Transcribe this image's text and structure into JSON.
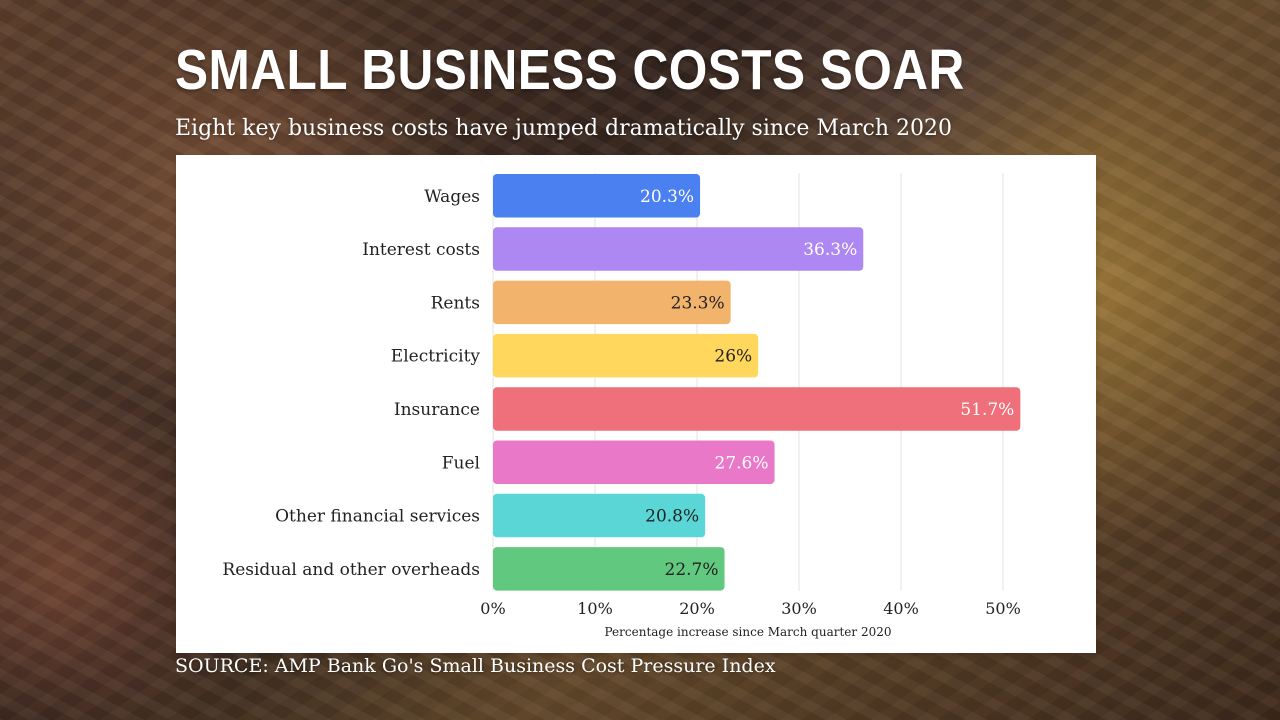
{
  "header": {
    "title": "SMALL BUSINESS COSTS SOAR",
    "subtitle": "Eight key business costs have jumped dramatically since March 2020"
  },
  "footer": {
    "source": "SOURCE: AMP Bank Go's Small Business Cost Pressure Index"
  },
  "chart_data": {
    "type": "bar",
    "orientation": "horizontal",
    "title": "SMALL BUSINESS COSTS SOAR",
    "subtitle": "Eight key business costs have jumped dramatically since March 2020",
    "xlabel": "Percentage increase since March quarter 2020",
    "ylabel": "",
    "xlim": [
      0,
      50
    ],
    "grid": true,
    "legend": "none",
    "ticks": [
      "0%",
      "10%",
      "20%",
      "30%",
      "40%",
      "50%"
    ],
    "categories": [
      "Wages",
      "Interest costs",
      "Rents",
      "Electricity",
      "Insurance",
      "Fuel",
      "Other financial services",
      "Residual and other overheads"
    ],
    "values": [
      20.3,
      36.3,
      23.3,
      26,
      51.7,
      27.6,
      20.8,
      22.7
    ],
    "value_labels": [
      "20.3%",
      "36.3%",
      "23.3%",
      "26%",
      "51.7%",
      "27.6%",
      "20.8%",
      "22.7%"
    ],
    "colors": [
      "#4a80f0",
      "#ae88f2",
      "#f2b36c",
      "#ffd75c",
      "#ef6f7b",
      "#ea78c9",
      "#5bd6d6",
      "#61c97f"
    ],
    "label_colors": [
      "#ffffff",
      "#ffffff",
      "#222222",
      "#222222",
      "#ffffff",
      "#ffffff",
      "#222222",
      "#222222"
    ]
  }
}
